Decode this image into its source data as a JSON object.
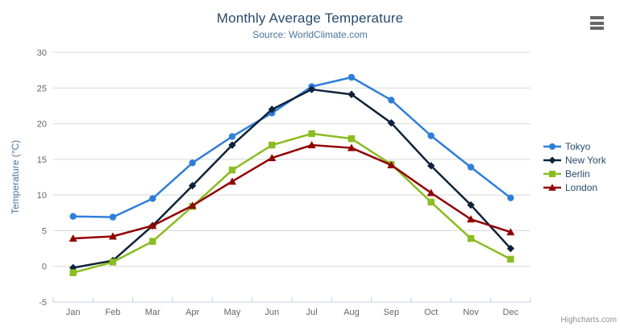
{
  "chart": {
    "credits": "Highcharts.com",
    "background": "#ffffff",
    "title_color": "#274b6d",
    "subtitle_color": "#4d759e",
    "axis_label_color": "#666666",
    "grid_color": "#d8d8d8",
    "axis_line_color": "#c0d0e0",
    "legend_text_color": "#274b6d",
    "credits_color": "#909090",
    "menu_icon": "hamburger-icon",
    "menu_icon_color": "#666666"
  },
  "chart_data": {
    "type": "line",
    "title": "Monthly Average Temperature",
    "subtitle": "Source: WorldClimate.com",
    "xlabel": "",
    "ylabel": "Temperature (°C)",
    "ylim": [
      -5,
      30
    ],
    "ytick_step": 5,
    "grid": true,
    "legend_position": "right",
    "categories": [
      "Jan",
      "Feb",
      "Mar",
      "Apr",
      "May",
      "Jun",
      "Jul",
      "Aug",
      "Sep",
      "Oct",
      "Nov",
      "Dec"
    ],
    "series": [
      {
        "name": "Tokyo",
        "color": "#2f7ed8",
        "marker": "circle",
        "values": [
          7.0,
          6.9,
          9.5,
          14.5,
          18.2,
          21.5,
          25.2,
          26.5,
          23.3,
          18.3,
          13.9,
          9.6
        ]
      },
      {
        "name": "New York",
        "color": "#0d233a",
        "marker": "diamond",
        "values": [
          -0.2,
          0.8,
          5.7,
          11.3,
          17.0,
          22.0,
          24.8,
          24.1,
          20.1,
          14.1,
          8.6,
          2.5
        ]
      },
      {
        "name": "Berlin",
        "color": "#8bbc21",
        "marker": "square",
        "values": [
          -0.9,
          0.6,
          3.5,
          8.4,
          13.5,
          17.0,
          18.6,
          17.9,
          14.3,
          9.0,
          3.9,
          1.0
        ]
      },
      {
        "name": "London",
        "color": "#910000",
        "marker": "triangle",
        "values": [
          3.9,
          4.2,
          5.7,
          8.5,
          11.9,
          15.2,
          17.0,
          16.6,
          14.2,
          10.3,
          6.6,
          4.8
        ]
      }
    ]
  }
}
